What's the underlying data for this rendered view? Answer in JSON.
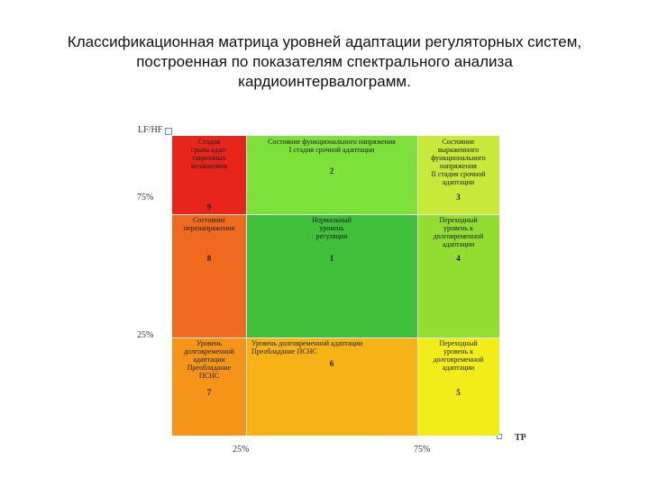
{
  "title": {
    "line1": "Классификационная матрица уровней адаптации регуляторных систем,",
    "line2": "построенная по показателям спектрального анализа",
    "line3": "кардиоинтервалограмм."
  },
  "axes": {
    "y_label": "LF/HF",
    "y_tick_top": "75%",
    "y_tick_bottom": "25%",
    "x_label": "TP",
    "x_tick_left": "25%",
    "x_tick_right": "75%"
  },
  "colors": {
    "red": "#e8251b",
    "bright_green": "#7ee03a",
    "yellow_green": "#c8e83a",
    "orange_red": "#ef6a1e",
    "mid_green": "#3fbf3a",
    "light_green": "#93dc32",
    "orange": "#f4951a",
    "amber": "#f7b218",
    "yellow": "#f2ec1a"
  },
  "cells": [
    {
      "id": "stage-adaptation-breakdown",
      "label": "Стадия\nсрыва адап-\nтационных\nмеханизмов",
      "number": "9",
      "color": "red"
    },
    {
      "id": "functional-tension-1",
      "label": "Состояние функционального напряжения\nI стадия срочной адаптации",
      "number": "2",
      "color": "bright_green"
    },
    {
      "id": "functional-tension-2",
      "label": "Состояние\nвыраженного\nфункционального\nнапряжения\nII стадия срочной\nадаптации",
      "number": "3",
      "color": "yellow_green"
    },
    {
      "id": "overstrain",
      "label": "Состояние\nперенапряжения",
      "number": "8",
      "color": "orange_red"
    },
    {
      "id": "normal-regulation",
      "label": "Нормальный\nуровень\nрегуляции",
      "number": "1",
      "color": "mid_green"
    },
    {
      "id": "transition-long-term",
      "label": "Переходный\nуровень к\nдолговременной\nадаптации",
      "number": "4",
      "color": "light_green"
    },
    {
      "id": "long-term-psns-dominance",
      "label": "Уровень\nдолговременной\nадаптации\nПреобладание\nПСНС",
      "number": "7",
      "color": "orange"
    },
    {
      "id": "long-term-adaptation-psns",
      "label": "Уровень долговременной адаптации\nПреобладание ПСНС",
      "number": "6",
      "color": "amber"
    },
    {
      "id": "transition-long-term-2",
      "label": "Переходный\nуровень к\nдолговременной\nадаптации",
      "number": "5",
      "color": "yellow"
    }
  ]
}
